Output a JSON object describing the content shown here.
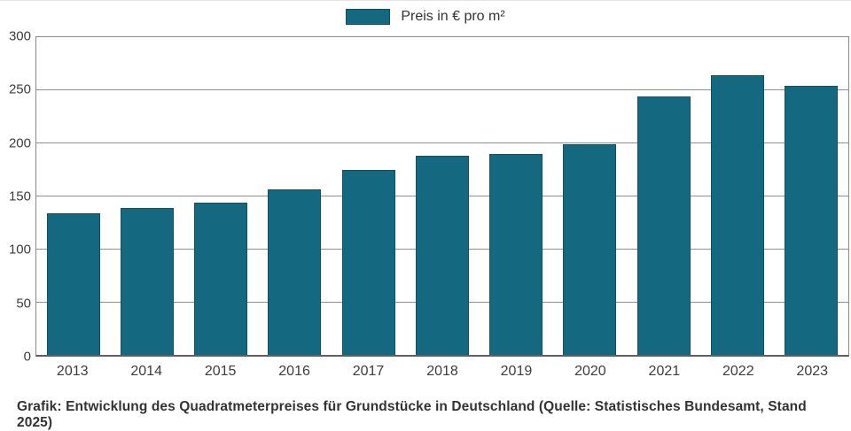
{
  "legend": {
    "label": "Preis in € pro m²"
  },
  "caption": "Grafik: Entwicklung des Quadratmeterpreises für Grundstücke in Deutschland (Quelle: Statistisches Bundesamt, Stand 2025)",
  "colors": {
    "bar": "#14687f",
    "gridline": "#8f8f8f",
    "axis": "#5f5f5f",
    "text": "#333333"
  },
  "chart_data": {
    "type": "bar",
    "title": "",
    "xlabel": "",
    "ylabel": "",
    "categories": [
      "2013",
      "2014",
      "2015",
      "2016",
      "2017",
      "2018",
      "2019",
      "2020",
      "2021",
      "2022",
      "2023"
    ],
    "values": [
      134,
      139,
      144,
      156,
      175,
      188,
      190,
      199,
      244,
      264,
      254
    ],
    "series_name": "Preis in € pro m²",
    "ylim": [
      0,
      300
    ],
    "yticks": [
      0,
      50,
      100,
      150,
      200,
      250,
      300
    ],
    "grid": true,
    "legend_position": "top-center"
  }
}
